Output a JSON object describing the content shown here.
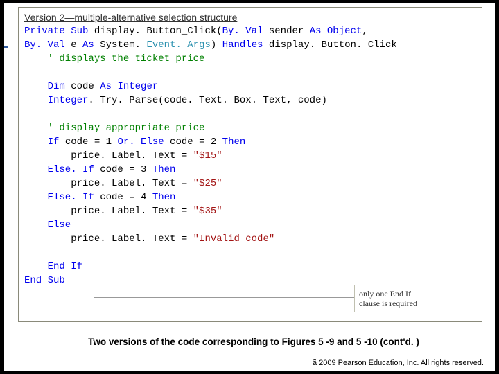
{
  "version_header": "Version 2—multiple-alternative selection structure",
  "code": {
    "l1_a": "Private Sub",
    "l1_b": " display. Button_Click(",
    "l1_c": "By. Val",
    "l1_d": " sender ",
    "l1_e": "As Object",
    "l1_f": ",",
    "l2_a": "By. Val",
    "l2_b": " e ",
    "l2_c": "As",
    "l2_d": " System. ",
    "l2_e": "Event. Args",
    "l2_f": ") ",
    "l2_g": "Handles",
    "l2_h": " display. Button. Click",
    "l3": "    ' displays the ticket price",
    "l4_a": "    Dim",
    "l4_b": " code ",
    "l4_c": "As Integer",
    "l5_a": "    Integer",
    "l5_b": ". Try. Parse(code. Text. Box. Text, code)",
    "l6": "    ' display appropriate price",
    "l7_a": "    If",
    "l7_b": " code = 1 ",
    "l7_c": "Or. Else",
    "l7_d": " code = 2 ",
    "l7_e": "Then",
    "l8_a": "        price. Label. Text = ",
    "l8_b": "\"$15\"",
    "l9_a": "    Else. If",
    "l9_b": " code = 3 ",
    "l9_c": "Then",
    "l10_a": "        price. Label. Text = ",
    "l10_b": "\"$25\"",
    "l11_a": "    Else. If",
    "l11_b": " code = 4 ",
    "l11_c": "Then",
    "l12_a": "        price. Label. Text = ",
    "l12_b": "\"$35\"",
    "l13": "    Else",
    "l14_a": "        price. Label. Text = ",
    "l14_b": "\"Invalid code\"",
    "l15": "    End If",
    "l16": "End Sub"
  },
  "annotation": "only one End If\nclause is required",
  "caption": "Two versions of the code corresponding to Figures 5 -9 and 5 -10 (cont'd. )",
  "copyright": "ã 2009 Pearson Education, Inc.  All rights reserved.",
  "colors": {
    "keyword": "#0000ee",
    "comment": "#008000",
    "type": "#2b91af",
    "string": "#a31515",
    "box_border": "#8a8a7a",
    "annotation_border": "#c0c0b0",
    "background": "#000000",
    "page": "#ffffff"
  }
}
